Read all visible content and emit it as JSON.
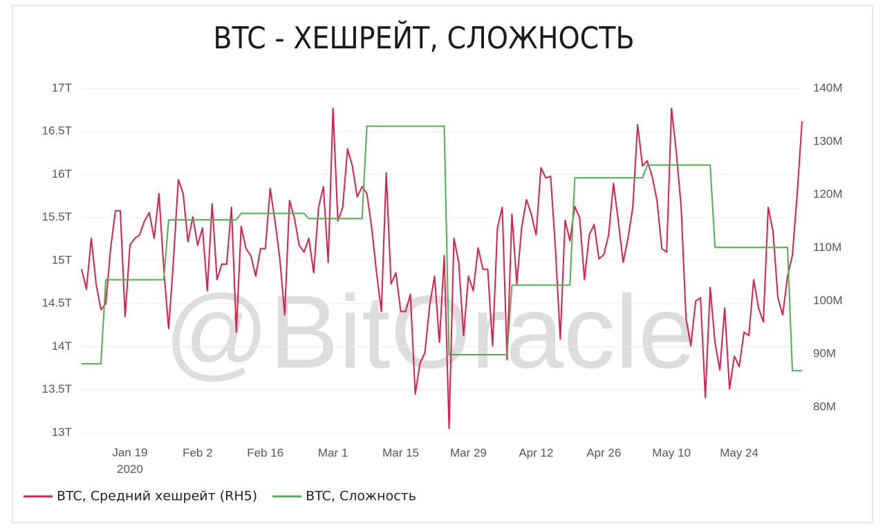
{
  "chart_data": {
    "type": "line",
    "title": "BTC - ХЕШРЕЙТ, СЛОЖНОСТЬ",
    "watermark": "@BitOracle",
    "x": [
      "2020-01-09",
      "2020-01-10",
      "2020-01-11",
      "2020-01-12",
      "2020-01-13",
      "2020-01-14",
      "2020-01-15",
      "2020-01-16",
      "2020-01-17",
      "2020-01-18",
      "2020-01-19",
      "2020-01-20",
      "2020-01-21",
      "2020-01-22",
      "2020-01-23",
      "2020-01-24",
      "2020-01-25",
      "2020-01-26",
      "2020-01-27",
      "2020-01-28",
      "2020-01-29",
      "2020-01-30",
      "2020-01-31",
      "2020-02-01",
      "2020-02-02",
      "2020-02-03",
      "2020-02-04",
      "2020-02-05",
      "2020-02-06",
      "2020-02-07",
      "2020-02-08",
      "2020-02-09",
      "2020-02-10",
      "2020-02-11",
      "2020-02-12",
      "2020-02-13",
      "2020-02-14",
      "2020-02-15",
      "2020-02-16",
      "2020-02-17",
      "2020-02-18",
      "2020-02-19",
      "2020-02-20",
      "2020-02-21",
      "2020-02-22",
      "2020-02-23",
      "2020-02-24",
      "2020-02-25",
      "2020-02-26",
      "2020-02-27",
      "2020-02-28",
      "2020-02-29",
      "2020-03-01",
      "2020-03-02",
      "2020-03-03",
      "2020-03-04",
      "2020-03-05",
      "2020-03-06",
      "2020-03-07",
      "2020-03-08",
      "2020-03-09",
      "2020-03-10",
      "2020-03-11",
      "2020-03-12",
      "2020-03-13",
      "2020-03-14",
      "2020-03-15",
      "2020-03-16",
      "2020-03-17",
      "2020-03-18",
      "2020-03-19",
      "2020-03-20",
      "2020-03-21",
      "2020-03-22",
      "2020-03-23",
      "2020-03-24",
      "2020-03-25",
      "2020-03-26",
      "2020-03-27",
      "2020-03-28",
      "2020-03-29",
      "2020-03-30",
      "2020-03-31",
      "2020-04-01",
      "2020-04-02",
      "2020-04-03",
      "2020-04-04",
      "2020-04-05",
      "2020-04-06",
      "2020-04-07",
      "2020-04-08",
      "2020-04-09",
      "2020-04-10",
      "2020-04-11",
      "2020-04-12",
      "2020-04-13",
      "2020-04-14",
      "2020-04-15",
      "2020-04-16",
      "2020-04-17",
      "2020-04-18",
      "2020-04-19",
      "2020-04-20",
      "2020-04-21",
      "2020-04-22",
      "2020-04-23",
      "2020-04-24",
      "2020-04-25",
      "2020-04-26",
      "2020-04-27",
      "2020-04-28",
      "2020-04-29",
      "2020-04-30",
      "2020-05-01",
      "2020-05-02",
      "2020-05-03",
      "2020-05-04",
      "2020-05-05",
      "2020-05-06",
      "2020-05-07",
      "2020-05-08",
      "2020-05-09",
      "2020-05-10",
      "2020-05-11",
      "2020-05-12",
      "2020-05-13",
      "2020-05-14",
      "2020-05-15",
      "2020-05-16",
      "2020-05-17",
      "2020-05-18",
      "2020-05-19",
      "2020-05-20",
      "2020-05-21",
      "2020-05-22",
      "2020-05-23",
      "2020-05-24",
      "2020-05-25",
      "2020-05-26",
      "2020-05-27",
      "2020-05-28",
      "2020-05-29",
      "2020-05-30",
      "2020-05-31",
      "2020-06-01",
      "2020-06-02",
      "2020-06-03",
      "2020-06-04",
      "2020-06-05",
      "2020-06-06"
    ],
    "xlim": [
      "2020-01-09",
      "2020-06-06"
    ],
    "xticks": [
      {
        "value": "2020-01-19",
        "label": "Jan 19\n2020"
      },
      {
        "value": "2020-02-02",
        "label": "Feb 2"
      },
      {
        "value": "2020-02-16",
        "label": "Feb 16"
      },
      {
        "value": "2020-03-01",
        "label": "Mar 1"
      },
      {
        "value": "2020-03-15",
        "label": "Mar 15"
      },
      {
        "value": "2020-03-29",
        "label": "Mar 29"
      },
      {
        "value": "2020-04-12",
        "label": "Apr 12"
      },
      {
        "value": "2020-04-26",
        "label": "Apr 26"
      },
      {
        "value": "2020-05-10",
        "label": "May 10"
      },
      {
        "value": "2020-05-24",
        "label": "May 24"
      }
    ],
    "ylim": [
      13,
      17
    ],
    "yticks": [
      {
        "value": 13,
        "label": "13T"
      },
      {
        "value": 13.5,
        "label": "13.5T"
      },
      {
        "value": 14,
        "label": "14T"
      },
      {
        "value": 14.5,
        "label": "14.5T"
      },
      {
        "value": 15,
        "label": "15T"
      },
      {
        "value": 15.5,
        "label": "15.5T"
      },
      {
        "value": 16,
        "label": "16T"
      },
      {
        "value": 16.5,
        "label": "16.5T"
      },
      {
        "value": 17,
        "label": "17T"
      }
    ],
    "y2lim": [
      75.2,
      140
    ],
    "y2ticks": [
      {
        "value": 80,
        "label": "80M"
      },
      {
        "value": 90,
        "label": "90M"
      },
      {
        "value": 100,
        "label": "100M"
      },
      {
        "value": 110,
        "label": "110M"
      },
      {
        "value": 120,
        "label": "120M"
      },
      {
        "value": 130,
        "label": "130M"
      },
      {
        "value": 140,
        "label": "140M"
      }
    ],
    "grid": true,
    "legend": "bottom",
    "series": [
      {
        "name": "BTC, Средний хешрейт (RH5)",
        "color": "#d81f4e",
        "axis": "y",
        "values": [
          14.9,
          14.67,
          15.26,
          14.73,
          14.43,
          14.5,
          15.14,
          15.58,
          15.58,
          14.35,
          15.18,
          15.26,
          15.3,
          15.46,
          15.56,
          15.26,
          15.78,
          14.9,
          14.21,
          15.0,
          15.94,
          15.78,
          15.22,
          15.51,
          15.18,
          15.38,
          14.65,
          15.66,
          14.78,
          14.96,
          14.96,
          15.62,
          14.17,
          15.4,
          15.14,
          15.06,
          14.82,
          15.14,
          15.14,
          15.84,
          15.46,
          15.02,
          14.37,
          15.7,
          15.5,
          15.18,
          15.1,
          15.26,
          14.86,
          15.62,
          15.86,
          14.98,
          16.77,
          15.46,
          15.62,
          16.3,
          16.1,
          15.74,
          15.86,
          15.78,
          15.38,
          14.86,
          14.41,
          16.02,
          14.73,
          14.86,
          14.41,
          14.41,
          14.61,
          13.45,
          13.81,
          13.93,
          14.49,
          14.82,
          14.05,
          15.06,
          13.05,
          15.26,
          14.98,
          14.13,
          14.82,
          14.65,
          15.15,
          14.9,
          14.9,
          14.01,
          15.38,
          15.62,
          13.85,
          15.54,
          14.73,
          15.38,
          15.71,
          15.54,
          15.3,
          16.08,
          15.96,
          15.98,
          15.14,
          14.09,
          15.47,
          15.23,
          15.63,
          15.5,
          14.78,
          15.3,
          15.42,
          15.02,
          15.07,
          15.3,
          15.9,
          15.46,
          14.98,
          15.26,
          15.62,
          16.58,
          16.1,
          16.16,
          15.98,
          15.7,
          15.14,
          15.1,
          16.77,
          16.26,
          15.62,
          14.33,
          14.01,
          14.53,
          14.57,
          13.41,
          14.69,
          14.05,
          13.73,
          14.45,
          13.51,
          13.89,
          13.77,
          14.17,
          14.13,
          14.78,
          14.45,
          14.29,
          15.62,
          15.34,
          14.57,
          14.37,
          14.82,
          15.06,
          15.78,
          16.62
        ]
      },
      {
        "name": "BTC, Сложность",
        "color": "#4caf50",
        "axis": "y2",
        "values": [
          88.2,
          88.2,
          88.2,
          88.2,
          88.2,
          104,
          104,
          104,
          104,
          104,
          104,
          104,
          104,
          104,
          104,
          104,
          104,
          104,
          115.3,
          115.3,
          115.3,
          115.3,
          115.3,
          115.3,
          115.3,
          115.3,
          115.3,
          115.3,
          115.3,
          115.3,
          115.3,
          115.3,
          115.3,
          116.5,
          116.5,
          116.5,
          116.5,
          116.5,
          116.5,
          116.5,
          116.5,
          116.5,
          116.5,
          116.5,
          116.5,
          116.5,
          116.5,
          115.5,
          115.5,
          115.5,
          115.5,
          115.5,
          115.5,
          115.5,
          115.5,
          115.5,
          115.5,
          115.5,
          115.5,
          132.9,
          132.9,
          132.9,
          132.9,
          132.9,
          132.9,
          132.9,
          132.9,
          132.9,
          132.9,
          132.9,
          132.9,
          132.9,
          132.9,
          132.9,
          132.9,
          132.9,
          89.9,
          89.9,
          89.9,
          89.9,
          89.9,
          89.9,
          89.9,
          89.9,
          89.9,
          89.9,
          89.9,
          89.9,
          89.9,
          103,
          103,
          103,
          103,
          103,
          103,
          103,
          103,
          103,
          103,
          103,
          103,
          103,
          123.2,
          123.2,
          123.2,
          123.2,
          123.2,
          123.2,
          123.2,
          123.2,
          123.2,
          123.2,
          123.2,
          123.2,
          123.2,
          123.2,
          123.2,
          125.6,
          125.6,
          125.6,
          125.6,
          125.6,
          125.6,
          125.6,
          125.6,
          125.6,
          125.6,
          125.6,
          125.6,
          125.6,
          125.6,
          110.1,
          110.1,
          110.1,
          110.1,
          110.1,
          110.1,
          110.1,
          110.1,
          110.1,
          110.1,
          110.1,
          110.1,
          110.1,
          110.1,
          110.1,
          110.1,
          86.9,
          86.9,
          86.9
        ]
      }
    ]
  }
}
